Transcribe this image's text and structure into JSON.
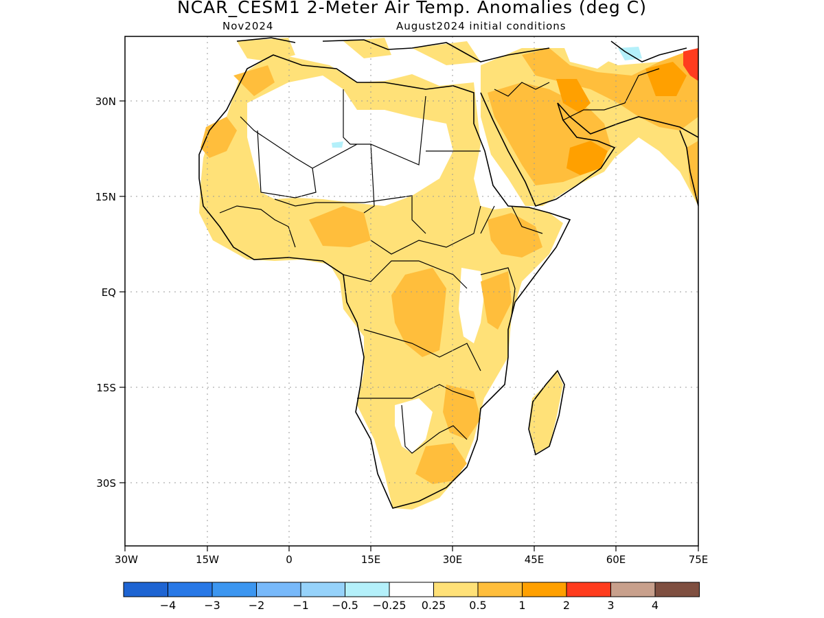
{
  "header": {
    "title": "NCAR_CESM1 2-Meter Air Temp. Anomalies (deg C)",
    "target_month": "Nov2024",
    "init_conditions": "August2024 initial conditions"
  },
  "axes": {
    "lon_labels": [
      "30W",
      "15W",
      "0",
      "15E",
      "30E",
      "45E",
      "60E",
      "75E"
    ],
    "lat_labels": [
      "30N",
      "15N",
      "EQ",
      "15S",
      "30S"
    ],
    "lon_range": [
      -30,
      75
    ],
    "lat_range": [
      -41,
      40
    ],
    "grid": "dotted"
  },
  "colorbar": {
    "colors": [
      "#1e64d2",
      "#2878e6",
      "#3c96f0",
      "#78b9fa",
      "#96d2fa",
      "#b4f0fa",
      "#ffffff",
      "#ffe178",
      "#ffbe3c",
      "#ffa000",
      "#ff3c1e",
      "#c8a08c",
      "#7f4f40"
    ],
    "labels": [
      "−4",
      "−3",
      "−2",
      "−1",
      "−0.5",
      "−0.25",
      "0.25",
      "0.5",
      "1",
      "2",
      "3",
      "4"
    ]
  },
  "legend_colors": {
    "anomaly_0_25_to_0_5": "#ffe178",
    "anomaly_0_5_to_1": "#ffbe3c",
    "anomaly_1_to_2": "#ffa000",
    "anomaly_2_to_3": "#ff3c1e",
    "anomaly_neg_0_25": "#b4f0fa"
  }
}
